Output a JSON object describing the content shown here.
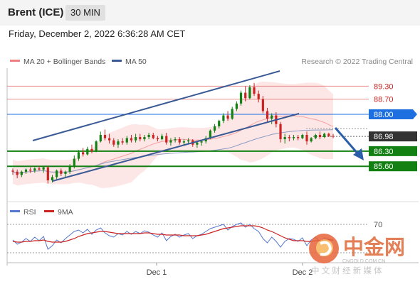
{
  "header": {
    "symbol": "Brent (ICE)",
    "timeframe": "30 MIN",
    "datetime": "Friday, December 2, 2022 6:36:28 AM CET"
  },
  "legend": {
    "items": [
      {
        "name": "MA 20 + Bollinger Bands",
        "color": "#f08080"
      },
      {
        "name": "MA 50",
        "color": "#3a5a95"
      }
    ],
    "credit": "Research © 2022 Trading Central"
  },
  "colors": {
    "support": "#128012",
    "pivot": "#1e6fe0",
    "resistance": "#e06060",
    "bollinger_fill": "#fde6e6",
    "channel": "#3a5a95",
    "candle_up": "#128012",
    "candle_down": "#cc2222",
    "current_price": "#333333",
    "arrow": "#2b5ea8",
    "rsi": "#5577cc",
    "rsi_ma": "#cc2222"
  },
  "chart_data": [
    {
      "type": "candlestick",
      "title": "",
      "ylim": [
        83.9,
        90.2
      ],
      "levels": [
        {
          "label": "89.30",
          "value": 89.3,
          "kind": "resistance"
        },
        {
          "label": "88.70",
          "value": 88.7,
          "kind": "resistance"
        },
        {
          "label": "88.00",
          "value": 88.0,
          "kind": "pivot"
        },
        {
          "label": "86.98",
          "value": 86.98,
          "kind": "current"
        },
        {
          "label": "86.30",
          "value": 86.3,
          "kind": "support"
        },
        {
          "label": "85.60",
          "value": 85.6,
          "kind": "support"
        }
      ],
      "x_labels": [
        "Dec 1",
        "Dec 2"
      ],
      "candles": [
        [
          85.4,
          85.5,
          85.2,
          85.35
        ],
        [
          85.35,
          85.45,
          85.05,
          85.2
        ],
        [
          85.2,
          85.4,
          85.1,
          85.35
        ],
        [
          85.35,
          85.5,
          85.25,
          85.45
        ],
        [
          85.45,
          85.55,
          85.3,
          85.4
        ],
        [
          85.4,
          85.55,
          85.3,
          85.5
        ],
        [
          85.5,
          85.6,
          85.4,
          85.45
        ],
        [
          85.45,
          85.6,
          85.3,
          85.55
        ],
        [
          85.55,
          85.6,
          84.8,
          84.95
        ],
        [
          84.95,
          85.2,
          84.85,
          85.1
        ],
        [
          85.1,
          85.45,
          85.0,
          85.4
        ],
        [
          85.4,
          85.5,
          85.15,
          85.25
        ],
        [
          85.25,
          85.4,
          85.1,
          85.35
        ],
        [
          85.35,
          85.7,
          85.25,
          85.6
        ],
        [
          85.6,
          86.1,
          85.5,
          85.95
        ],
        [
          85.95,
          86.35,
          85.85,
          86.25
        ],
        [
          86.25,
          86.45,
          86.05,
          86.15
        ],
        [
          86.15,
          86.5,
          86.1,
          86.4
        ],
        [
          86.4,
          86.6,
          86.2,
          86.3
        ],
        [
          86.3,
          86.8,
          86.25,
          86.75
        ],
        [
          86.75,
          87.2,
          86.7,
          87.05
        ],
        [
          87.05,
          87.3,
          86.8,
          86.9
        ],
        [
          86.9,
          87.1,
          86.65,
          86.8
        ],
        [
          86.8,
          86.9,
          86.5,
          86.6
        ],
        [
          86.6,
          86.85,
          86.45,
          86.75
        ],
        [
          86.75,
          86.9,
          86.6,
          86.7
        ],
        [
          86.7,
          87.0,
          86.6,
          86.9
        ],
        [
          86.9,
          87.05,
          86.7,
          86.8
        ],
        [
          86.8,
          87.1,
          86.7,
          86.95
        ],
        [
          86.95,
          87.1,
          86.75,
          86.85
        ],
        [
          86.85,
          87.05,
          86.75,
          86.95
        ],
        [
          86.95,
          87.15,
          86.85,
          87.05
        ],
        [
          87.05,
          87.15,
          86.85,
          86.9
        ],
        [
          86.9,
          87.0,
          86.75,
          86.85
        ],
        [
          86.85,
          87.1,
          86.8,
          87.0
        ],
        [
          87.0,
          87.15,
          86.6,
          86.7
        ],
        [
          86.7,
          86.9,
          86.55,
          86.8
        ],
        [
          86.8,
          86.95,
          86.7,
          86.85
        ],
        [
          86.85,
          86.95,
          86.6,
          86.7
        ],
        [
          86.7,
          86.85,
          86.6,
          86.75
        ],
        [
          86.75,
          86.9,
          86.65,
          86.8
        ],
        [
          86.8,
          86.85,
          86.5,
          86.6
        ],
        [
          86.6,
          86.75,
          86.45,
          86.7
        ],
        [
          86.7,
          86.8,
          86.55,
          86.75
        ],
        [
          86.75,
          87.0,
          86.65,
          86.9
        ],
        [
          86.9,
          87.3,
          86.85,
          87.25
        ],
        [
          87.25,
          87.55,
          87.15,
          87.45
        ],
        [
          87.45,
          87.75,
          87.35,
          87.7
        ],
        [
          87.7,
          88.05,
          87.6,
          87.95
        ],
        [
          87.95,
          88.15,
          87.7,
          87.8
        ],
        [
          87.8,
          88.35,
          87.75,
          88.25
        ],
        [
          88.25,
          88.6,
          88.15,
          88.5
        ],
        [
          88.5,
          89.1,
          88.4,
          89.0
        ],
        [
          89.0,
          89.3,
          88.6,
          88.75
        ],
        [
          88.75,
          89.35,
          88.7,
          89.25
        ],
        [
          89.25,
          89.45,
          88.85,
          88.95
        ],
        [
          88.95,
          89.1,
          88.55,
          88.7
        ],
        [
          88.7,
          88.85,
          88.05,
          88.15
        ],
        [
          88.15,
          88.3,
          87.65,
          87.8
        ],
        [
          87.8,
          88.05,
          87.55,
          87.95
        ],
        [
          87.95,
          88.1,
          87.4,
          87.55
        ],
        [
          87.55,
          87.65,
          86.7,
          86.85
        ],
        [
          86.85,
          87.1,
          86.65,
          86.95
        ],
        [
          86.95,
          87.05,
          86.75,
          86.9
        ],
        [
          86.9,
          87.05,
          86.8,
          86.95
        ],
        [
          86.95,
          87.05,
          86.8,
          86.9
        ],
        [
          86.9,
          87.1,
          86.85,
          87.05
        ],
        [
          87.05,
          87.2,
          86.6,
          86.75
        ],
        [
          86.75,
          86.95,
          86.7,
          86.9
        ],
        [
          86.9,
          87.1,
          86.85,
          87.05
        ],
        [
          87.05,
          87.2,
          86.85,
          86.95
        ],
        [
          86.95,
          87.15,
          86.9,
          87.1
        ],
        [
          87.1,
          87.15,
          86.95,
          87.0
        ],
        [
          87.0,
          87.1,
          86.9,
          86.98
        ]
      ]
    },
    {
      "type": "line",
      "title": "",
      "ylim": [
        20,
        80
      ],
      "y_ticks": [
        70
      ],
      "series": [
        {
          "name": "RSI",
          "values": [
            48,
            42,
            45,
            50,
            46,
            52,
            47,
            53,
            35,
            40,
            48,
            44,
            50,
            55,
            60,
            62,
            58,
            63,
            56,
            62,
            65,
            58,
            54,
            52,
            57,
            55,
            60,
            56,
            60,
            57,
            61,
            59,
            55,
            52,
            58,
            47,
            53,
            56,
            52,
            55,
            57,
            50,
            54,
            56,
            60,
            64,
            66,
            68,
            70,
            62,
            67,
            70,
            72,
            66,
            70,
            64,
            60,
            50,
            44,
            52,
            46,
            38,
            46,
            50,
            49,
            46,
            51,
            40,
            48,
            52,
            46,
            51,
            49,
            47
          ]
        },
        {
          "name": "9MA",
          "values": [
            46,
            45,
            45,
            46,
            46,
            47,
            47,
            48,
            46,
            45,
            45,
            45,
            46,
            48,
            50,
            53,
            55,
            57,
            58,
            59,
            60,
            60,
            59,
            58,
            57,
            57,
            57,
            57,
            57,
            57,
            58,
            58,
            57,
            56,
            56,
            55,
            55,
            55,
            55,
            54,
            54,
            54,
            54,
            55,
            56,
            58,
            60,
            62,
            64,
            65,
            66,
            67,
            68,
            68,
            68,
            68,
            67,
            65,
            62,
            60,
            57,
            54,
            51,
            49,
            47,
            47,
            47,
            46,
            46,
            47,
            47,
            48,
            48,
            48
          ]
        }
      ]
    }
  ],
  "watermark": {
    "brand": "中金网",
    "site": "CNGOLD.COM.CN",
    "tagline": "中 文 财 经 新 媒 体"
  }
}
